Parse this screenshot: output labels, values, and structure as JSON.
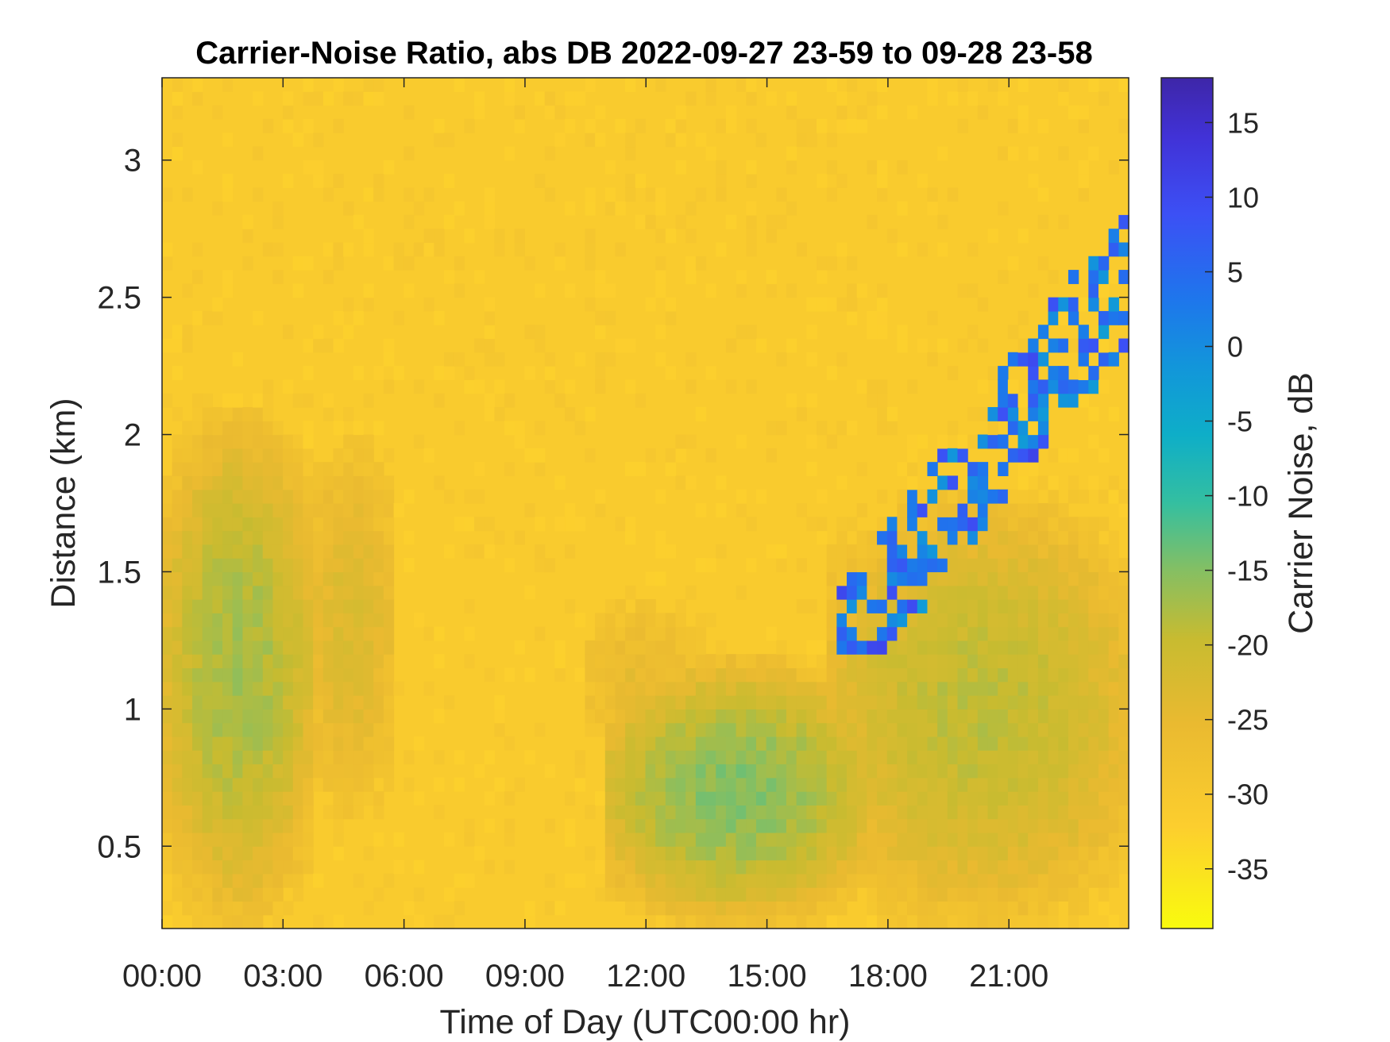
{
  "chart_data": {
    "type": "heatmap",
    "title": "Carrier-Noise Ratio, abs DB 2022-09-27 23-59 to 09-28 23-58",
    "xlabel": "Time of Day (UTC00:00 hr)",
    "ylabel": "Distance (km)",
    "colorbar_label": "Carrier Noise, dB",
    "colormap": "parula",
    "colormap_reversed": true,
    "xlim_hours": [
      0,
      23.97
    ],
    "ylim_km": [
      0.2,
      3.3
    ],
    "clim_db": [
      -39,
      18
    ],
    "x_ticks": [
      {
        "hour": 0,
        "label": "00:00"
      },
      {
        "hour": 3,
        "label": "03:00"
      },
      {
        "hour": 6,
        "label": "06:00"
      },
      {
        "hour": 9,
        "label": "09:00"
      },
      {
        "hour": 12,
        "label": "12:00"
      },
      {
        "hour": 15,
        "label": "15:00"
      },
      {
        "hour": 18,
        "label": "18:00"
      },
      {
        "hour": 21,
        "label": "21:00"
      }
    ],
    "y_ticks": [
      {
        "km": 0.5,
        "label": "0.5"
      },
      {
        "km": 1,
        "label": "1"
      },
      {
        "km": 1.5,
        "label": "1.5"
      },
      {
        "km": 2,
        "label": "2"
      },
      {
        "km": 2.5,
        "label": "2.5"
      },
      {
        "km": 3,
        "label": "3"
      }
    ],
    "colorbar_ticks": [
      {
        "db": 15,
        "label": "15"
      },
      {
        "db": 10,
        "label": "10"
      },
      {
        "db": 5,
        "label": "5"
      },
      {
        "db": 0,
        "label": "0"
      },
      {
        "db": -5,
        "label": "-5"
      },
      {
        "db": -10,
        "label": "-10"
      },
      {
        "db": -15,
        "label": "-15"
      },
      {
        "db": -20,
        "label": "-20"
      },
      {
        "db": -25,
        "label": "-25"
      },
      {
        "db": -30,
        "label": "-30"
      },
      {
        "db": -35,
        "label": "-35"
      }
    ],
    "background_db": -31,
    "features": [
      {
        "t_start": 0,
        "t_end": 3.8,
        "d_min": 0.2,
        "d_max": 2.1,
        "peak_db": -17
      },
      {
        "t_start": 3.5,
        "t_end": 5.8,
        "d_min": 0.6,
        "d_max": 2.0,
        "peak_db": -23
      },
      {
        "t_start": 10.5,
        "t_end": 13.5,
        "d_min": 0.8,
        "d_max": 1.4,
        "peak_db": -25
      },
      {
        "t_start": 11,
        "t_end": 17.5,
        "d_min": 0.2,
        "d_max": 1.2,
        "peak_db": -15
      },
      {
        "t_start": 16.5,
        "t_end": 24,
        "d_min": 0.2,
        "d_max": 1.8,
        "peak_db": -19
      },
      {
        "t_start": 16.8,
        "t_end": 24,
        "d_min": 1.2,
        "d_max": 2.8,
        "peak_db": 10
      }
    ]
  }
}
